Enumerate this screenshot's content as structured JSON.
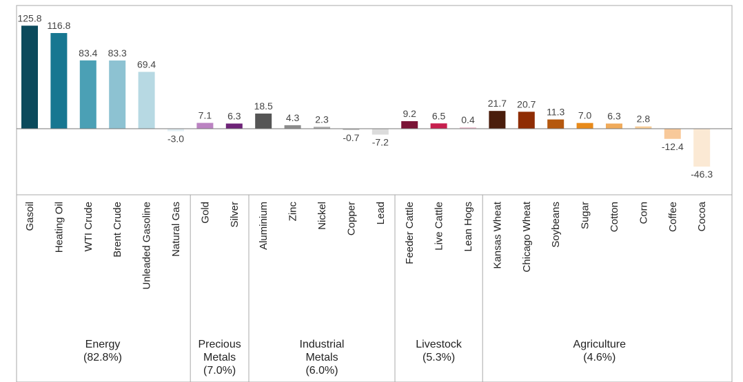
{
  "chart_data": {
    "type": "bar",
    "categories": [
      "Gasoil",
      "Heating Oil",
      "WTI Crude",
      "Brent Crude",
      "Unleaded Gasoline",
      "Natural Gas",
      "Gold",
      "Silver",
      "Aluminium",
      "Zinc",
      "Nickel",
      "Copper",
      "Lead",
      "Feeder Cattle",
      "Live Cattle",
      "Lean Hogs",
      "Kansas Wheat",
      "Chicago Wheat",
      "Soybeans",
      "Sugar",
      "Cotton",
      "Corn",
      "Coffee",
      "Cocoa"
    ],
    "values": [
      125.8,
      116.8,
      83.4,
      83.3,
      69.4,
      -3.0,
      7.1,
      6.3,
      18.5,
      4.3,
      2.3,
      -0.7,
      -7.2,
      9.2,
      6.5,
      0.4,
      21.7,
      20.7,
      11.3,
      7.0,
      6.3,
      2.8,
      -12.4,
      -46.3
    ],
    "value_labels": [
      "125.8",
      "116.8",
      "83.4",
      "83.3",
      "69.4",
      "-3.0",
      "7.1",
      "6.3",
      "18.5",
      "4.3",
      "2.3",
      "-0.7",
      "-7.2",
      "9.2",
      "6.5",
      "0.4",
      "21.7",
      "20.7",
      "11.3",
      "7.0",
      "6.3",
      "2.8",
      "-12.4",
      "-46.3"
    ],
    "colors": [
      "#0b4a5c",
      "#177791",
      "#4ba0b5",
      "#8dc2d2",
      "#b7d9e3",
      "#e2eef3",
      "#bb83c2",
      "#6e2378",
      "#555555",
      "#8c8c8c",
      "#aaaaaa",
      "#c4c4c4",
      "#dcdcdc",
      "#7b1436",
      "#c71f4e",
      "#f0c3d3",
      "#4a1d0c",
      "#8f2d04",
      "#b5580e",
      "#e88a1a",
      "#f0ab5b",
      "#f7ce9a",
      "#f8c99a",
      "#fbe9d4"
    ],
    "groups": [
      {
        "lines": [
          "Energy",
          "(82.8%)"
        ],
        "start": 0,
        "count": 6
      },
      {
        "lines": [
          "Precious",
          "Metals",
          "(7.0%)"
        ],
        "start": 6,
        "count": 2
      },
      {
        "lines": [
          "Industrial",
          "Metals",
          "(6.0%)"
        ],
        "start": 8,
        "count": 5
      },
      {
        "lines": [
          "Livestock",
          "(5.3%)"
        ],
        "start": 13,
        "count": 3
      },
      {
        "lines": [
          "Agriculture",
          "(4.6%)"
        ],
        "start": 16,
        "count": 8
      }
    ],
    "title": "",
    "xlabel": "",
    "ylabel": "",
    "ylim": [
      -60,
      135
    ],
    "grid": false
  }
}
